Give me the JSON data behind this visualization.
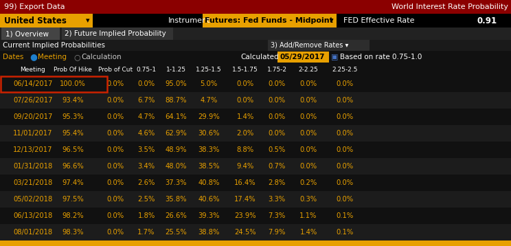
{
  "title_left": "99) Export Data",
  "title_right": "World Interest Rate Probability",
  "title_bg": "#8B0000",
  "title_fg": "#FFFFFF",
  "row2_left": "United States",
  "row2_instrument_label": "Instrument",
  "row2_instrument_value": "Futures: Fed Funds - Midpoint",
  "row2_rate_label": "FED Effective Rate",
  "row2_rate_value": "0.91",
  "row2_bg": "#000000",
  "row2_orange_bg": "#E8A000",
  "tab1": "1) Overview",
  "tab2": "2) Future Implied Probability",
  "section_label": "Current Implied Probabilities",
  "section_add": "3) Add/Remove Rates ▾",
  "dates_label": "Dates",
  "meeting_radio": "Meeting",
  "calc_radio": "Calculation",
  "calculated_label": "Calculated",
  "calculated_date": "05/29/2017",
  "based_label": "Based on rate 0.75-1.0",
  "col_headers": [
    "Meeting",
    "Prob Of Hike",
    "Prob of Cut",
    "0.75-1",
    "1-1.25",
    "1.25-1.5",
    "1.5-1.75",
    "1.75-2",
    "2-2.25",
    "2.25-2.5"
  ],
  "rows": [
    [
      "06/14/2017",
      "100.0%",
      "0.0%",
      "0.0%",
      "95.0%",
      "5.0%",
      "0.0%",
      "0.0%",
      "0.0%",
      "0.0%"
    ],
    [
      "07/26/2017",
      "93.4%",
      "0.0%",
      "6.7%",
      "88.7%",
      "4.7%",
      "0.0%",
      "0.0%",
      "0.0%",
      "0.0%"
    ],
    [
      "09/20/2017",
      "95.3%",
      "0.0%",
      "4.7%",
      "64.1%",
      "29.9%",
      "1.4%",
      "0.0%",
      "0.0%",
      "0.0%"
    ],
    [
      "11/01/2017",
      "95.4%",
      "0.0%",
      "4.6%",
      "62.9%",
      "30.6%",
      "2.0%",
      "0.0%",
      "0.0%",
      "0.0%"
    ],
    [
      "12/13/2017",
      "96.5%",
      "0.0%",
      "3.5%",
      "48.9%",
      "38.3%",
      "8.8%",
      "0.5%",
      "0.0%",
      "0.0%"
    ],
    [
      "01/31/2018",
      "96.6%",
      "0.0%",
      "3.4%",
      "48.0%",
      "38.5%",
      "9.4%",
      "0.7%",
      "0.0%",
      "0.0%"
    ],
    [
      "03/21/2018",
      "97.4%",
      "0.0%",
      "2.6%",
      "37.3%",
      "40.8%",
      "16.4%",
      "2.8%",
      "0.2%",
      "0.0%"
    ],
    [
      "05/02/2018",
      "97.5%",
      "0.0%",
      "2.5%",
      "35.8%",
      "40.6%",
      "17.4%",
      "3.3%",
      "0.3%",
      "0.0%"
    ],
    [
      "06/13/2018",
      "98.2%",
      "0.0%",
      "1.8%",
      "26.6%",
      "39.3%",
      "23.9%",
      "7.3%",
      "1.1%",
      "0.1%"
    ],
    [
      "08/01/2018",
      "98.3%",
      "0.0%",
      "1.7%",
      "25.5%",
      "38.8%",
      "24.5%",
      "7.9%",
      "1.4%",
      "0.1%"
    ]
  ],
  "row_bg_dark": "#111111",
  "row_bg_mid": "#1c1c1c",
  "row_fg_orange": "#E8A000",
  "highlight_border": "#CC2200",
  "bg_color": "#111111",
  "tab_bg": "#444444",
  "tab2_bg": "#333333"
}
